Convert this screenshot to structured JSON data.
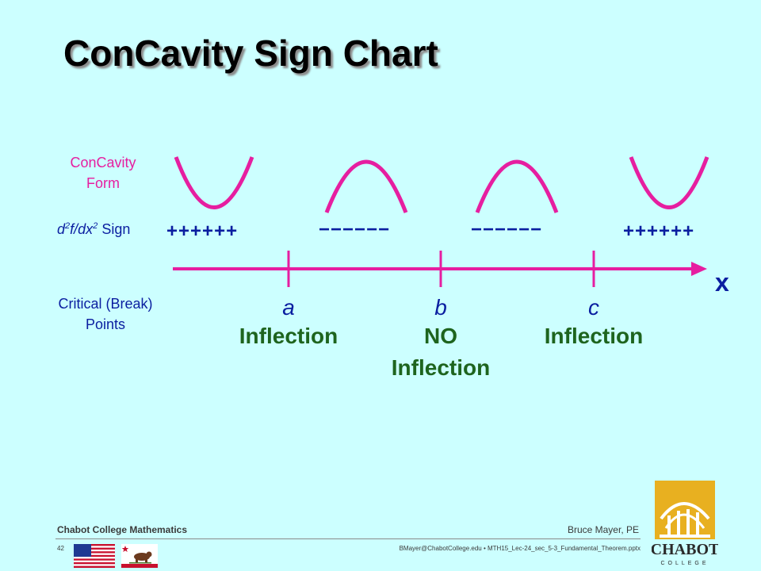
{
  "title": "ConCavity Sign Chart",
  "row_labels": {
    "concavity_form_line1": "ConCavity",
    "concavity_form_line2": "Form",
    "second_derivative_sign": "Sign",
    "critical_points_line1": "Critical (Break)",
    "critical_points_line2": "Points"
  },
  "signs": [
    "++++++",
    "−−−−−−",
    "−−−−−−",
    "++++++"
  ],
  "axis_label": "x",
  "points": [
    {
      "letter": "a",
      "status_line1": "Inflection",
      "status_line2": ""
    },
    {
      "letter": "b",
      "status_line1": "NO",
      "status_line2": "Inflection"
    },
    {
      "letter": "c",
      "status_line1": "Inflection",
      "status_line2": ""
    }
  ],
  "footer": {
    "course": "Chabot College Mathematics",
    "author": "Bruce Mayer, PE",
    "page_number": "42",
    "file_info": "BMayer@ChabotCollege.edu  •  MTH15_Lec-24_sec_5-3_Fundamental_Theorem.pptx",
    "flag_state_text": "CALIFORNIA REPUBLIC",
    "logo_text": "CHABOT",
    "logo_subtext": "COLLEGE"
  },
  "colors": {
    "background": "#ccffff",
    "curve": "#e61ea0",
    "axis": "#e61ea0",
    "sign_text": "#0a1ea0",
    "status_text": "#1e641e",
    "logo_gold": "#e8b020",
    "logo_dark": "#2a2a2a"
  }
}
